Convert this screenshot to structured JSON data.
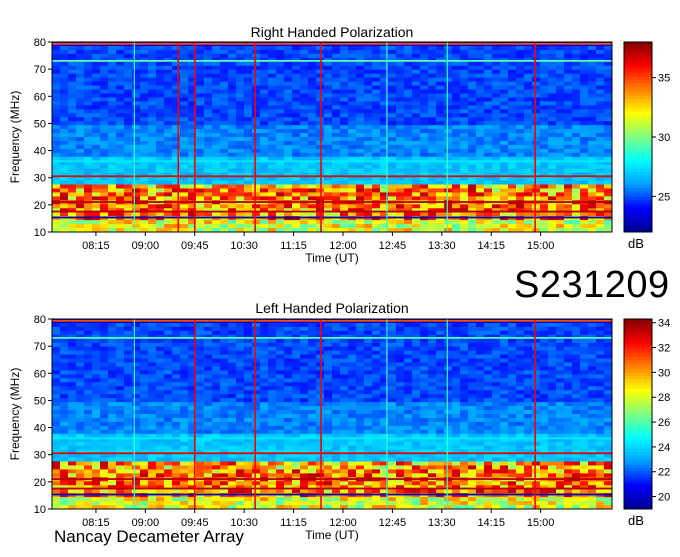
{
  "stamp": "S231209",
  "footer": "Nancay Decameter Array",
  "chart_data": [
    {
      "type": "heatmap",
      "title": "Right Handed Polarization",
      "xlabel": "Time (UT)",
      "ylabel": "Frequency (MHz)",
      "x_ticks": [
        "08:15",
        "09:00",
        "09:45",
        "10:30",
        "11:15",
        "12:00",
        "12:45",
        "13:30",
        "14:15",
        "15:00"
      ],
      "y_ticks": [
        10,
        20,
        30,
        40,
        50,
        60,
        70,
        80
      ],
      "x_range": [
        "07:35",
        "16:05"
      ],
      "y_range": [
        10,
        80
      ],
      "colorbar": {
        "label": "dB",
        "ticks": [
          25,
          30,
          35
        ],
        "range": [
          22,
          38
        ]
      },
      "colormap": [
        "#00008f",
        "#0000ff",
        "#00a0ff",
        "#00ffff",
        "#7fff7f",
        "#ffff00",
        "#ff8000",
        "#ff0000",
        "#800000"
      ],
      "features": {
        "strong_band_MHz": [
          15,
          28
        ],
        "bright_bursts_UT": [
          "09:30",
          "09:45",
          "10:40",
          "11:40",
          "14:55"
        ]
      }
    },
    {
      "type": "heatmap",
      "title": "Left Handed Polarization",
      "xlabel": "Time (UT)",
      "ylabel": "Frequency (MHz)",
      "x_ticks": [
        "08:15",
        "09:00",
        "09:45",
        "10:30",
        "11:15",
        "12:00",
        "12:45",
        "13:30",
        "14:15",
        "15:00"
      ],
      "y_ticks": [
        10,
        20,
        30,
        40,
        50,
        60,
        70,
        80
      ],
      "x_range": [
        "07:35",
        "16:05"
      ],
      "y_range": [
        10,
        80
      ],
      "colorbar": {
        "label": "dB",
        "ticks": [
          20,
          22,
          24,
          26,
          28,
          30,
          32,
          34
        ],
        "range": [
          19,
          34.3
        ]
      },
      "colormap": [
        "#00008f",
        "#0000ff",
        "#00a0ff",
        "#00ffff",
        "#7fff7f",
        "#ffff00",
        "#ff8000",
        "#ff0000",
        "#800000"
      ],
      "features": {
        "strong_band_MHz": [
          15,
          28
        ],
        "bright_bursts_UT": [
          "09:45",
          "10:40",
          "11:40",
          "14:55"
        ]
      }
    }
  ]
}
